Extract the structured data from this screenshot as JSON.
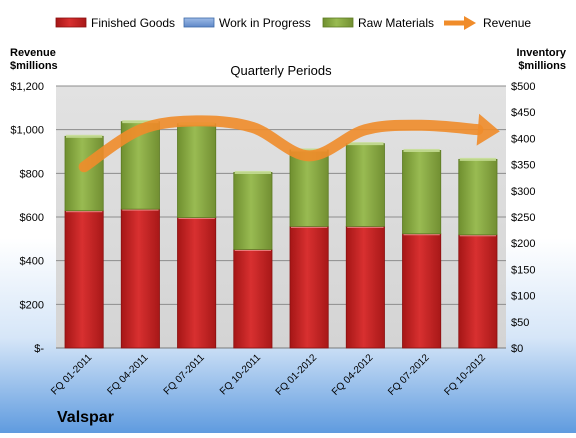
{
  "chart_data": {
    "type": "bar",
    "company": "Valspar",
    "title": "Quarterly Periods",
    "ylabel_left": [
      "Revenue",
      "$millions"
    ],
    "ylabel_right": [
      "Inventory",
      "$millions"
    ],
    "categories": [
      "FQ 01-2011",
      "FQ 04-2011",
      "FQ 07-2011",
      "FQ 10-2011",
      "FQ 01-2012",
      "FQ 04-2012",
      "FQ 07-2012",
      "FQ 10-2012"
    ],
    "left_axis": {
      "min": 0,
      "max": 1200,
      "step": 200,
      "ticks": [
        "$-",
        "$200",
        "$400",
        "$600",
        "$800",
        "$1,000",
        "$1,200"
      ]
    },
    "right_axis": {
      "min": 0,
      "max": 500,
      "step": 50,
      "ticks": [
        "$0",
        "$50",
        "$100",
        "$150",
        "$200",
        "$250",
        "$300",
        "$350",
        "$400",
        "$450",
        "$500"
      ]
    },
    "series": [
      {
        "name": "Finished Goods",
        "kind": "bar",
        "axis": "right",
        "color": "#cc2424",
        "values": [
          262,
          265,
          249,
          188,
          232,
          232,
          218,
          216
        ]
      },
      {
        "name": "Work in Progress",
        "kind": "bar",
        "axis": "right",
        "color": "#6f97d3",
        "values": [
          0,
          0,
          0,
          0,
          0,
          0,
          0,
          0
        ]
      },
      {
        "name": "Raw Materials",
        "kind": "bar",
        "axis": "right",
        "color": "#8dae45",
        "values": [
          142,
          167,
          179,
          147,
          146,
          158,
          159,
          144
        ]
      },
      {
        "name": "Revenue",
        "kind": "line",
        "axis": "left",
        "color": "#f08c2a",
        "values": [
          830,
          1000,
          1040,
          1010,
          880,
          1000,
          1020,
          1000
        ]
      }
    ],
    "grid": true,
    "legend": "top"
  }
}
